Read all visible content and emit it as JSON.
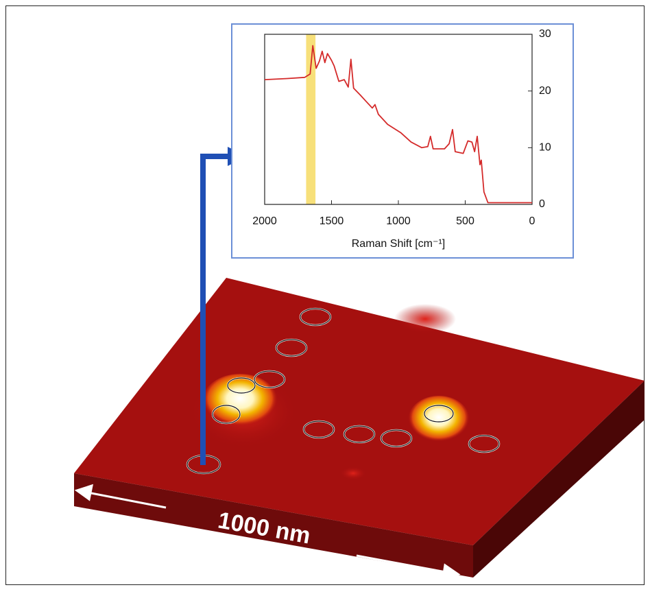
{
  "chart_data": {
    "type": "line",
    "xlabel": "Raman Shift [cm⁻¹]",
    "x": [
      2000,
      1830,
      1700,
      1660,
      1640,
      1615,
      1590,
      1570,
      1550,
      1530,
      1500,
      1480,
      1445,
      1405,
      1375,
      1355,
      1335,
      1285,
      1235,
      1195,
      1175,
      1150,
      1080,
      980,
      905,
      825,
      780,
      760,
      740,
      655,
      620,
      595,
      575,
      515,
      480,
      450,
      430,
      410,
      390,
      380,
      360,
      330,
      0
    ],
    "series": [
      {
        "color": "#d42a2a",
        "values": [
          22,
          22.2,
          22.4,
          23,
          28,
          24,
          25.3,
          27,
          25,
          26.6,
          25.4,
          24.4,
          21.7,
          22,
          20.7,
          25.6,
          20.5,
          19.3,
          18,
          17,
          17.6,
          15.9,
          14.1,
          12.6,
          11,
          10,
          10.2,
          12,
          9.8,
          9.8,
          10.7,
          13.2,
          9.3,
          9,
          11.2,
          11,
          9.3,
          12,
          7,
          7.8,
          2.2,
          0.3,
          0.3
        ]
      }
    ],
    "xlim": [
      2000,
      0
    ],
    "xticks": [
      2000,
      1500,
      1000,
      500,
      0
    ],
    "ylim": [
      0,
      30
    ],
    "yticks": [
      0,
      10,
      20,
      30
    ],
    "y_axis_side": "right",
    "highlight_range": [
      1690,
      1620
    ],
    "highlight_color": "#f7e07a"
  },
  "scale_bar_label": "1000 nm"
}
